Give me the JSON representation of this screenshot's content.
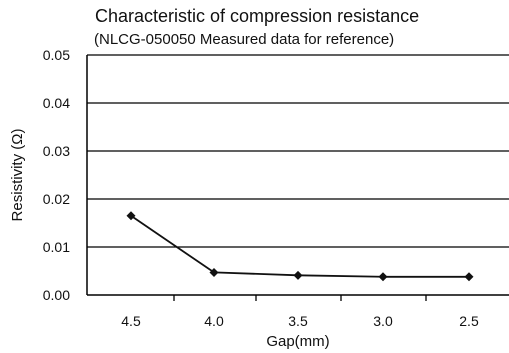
{
  "chart_data": {
    "type": "line",
    "title": "Characteristic of compression resistance",
    "subtitle": "(NLCG-050050 Measured data for reference)",
    "xlabel": "Gap(mm)",
    "ylabel": "Resistivity (Ω)",
    "x": [
      4.5,
      4.0,
      3.5,
      3.0,
      2.5
    ],
    "x_tick_labels": [
      "4.5",
      "4.0",
      "3.5",
      "3.0",
      "2.5"
    ],
    "y_tick_labels": [
      "0.05",
      "0.04",
      "0.03",
      "0.02",
      "0.01",
      "0.00"
    ],
    "ylim": [
      0,
      0.05
    ],
    "x_direction": "descending",
    "grid": "horizontal",
    "series": [
      {
        "values": [
          0.0165,
          0.0047,
          0.0041,
          0.0038,
          0.0038
        ]
      }
    ],
    "colors": {
      "line": "#111111",
      "grid": "#000000",
      "axis": "#000000"
    },
    "marker": "diamond"
  }
}
